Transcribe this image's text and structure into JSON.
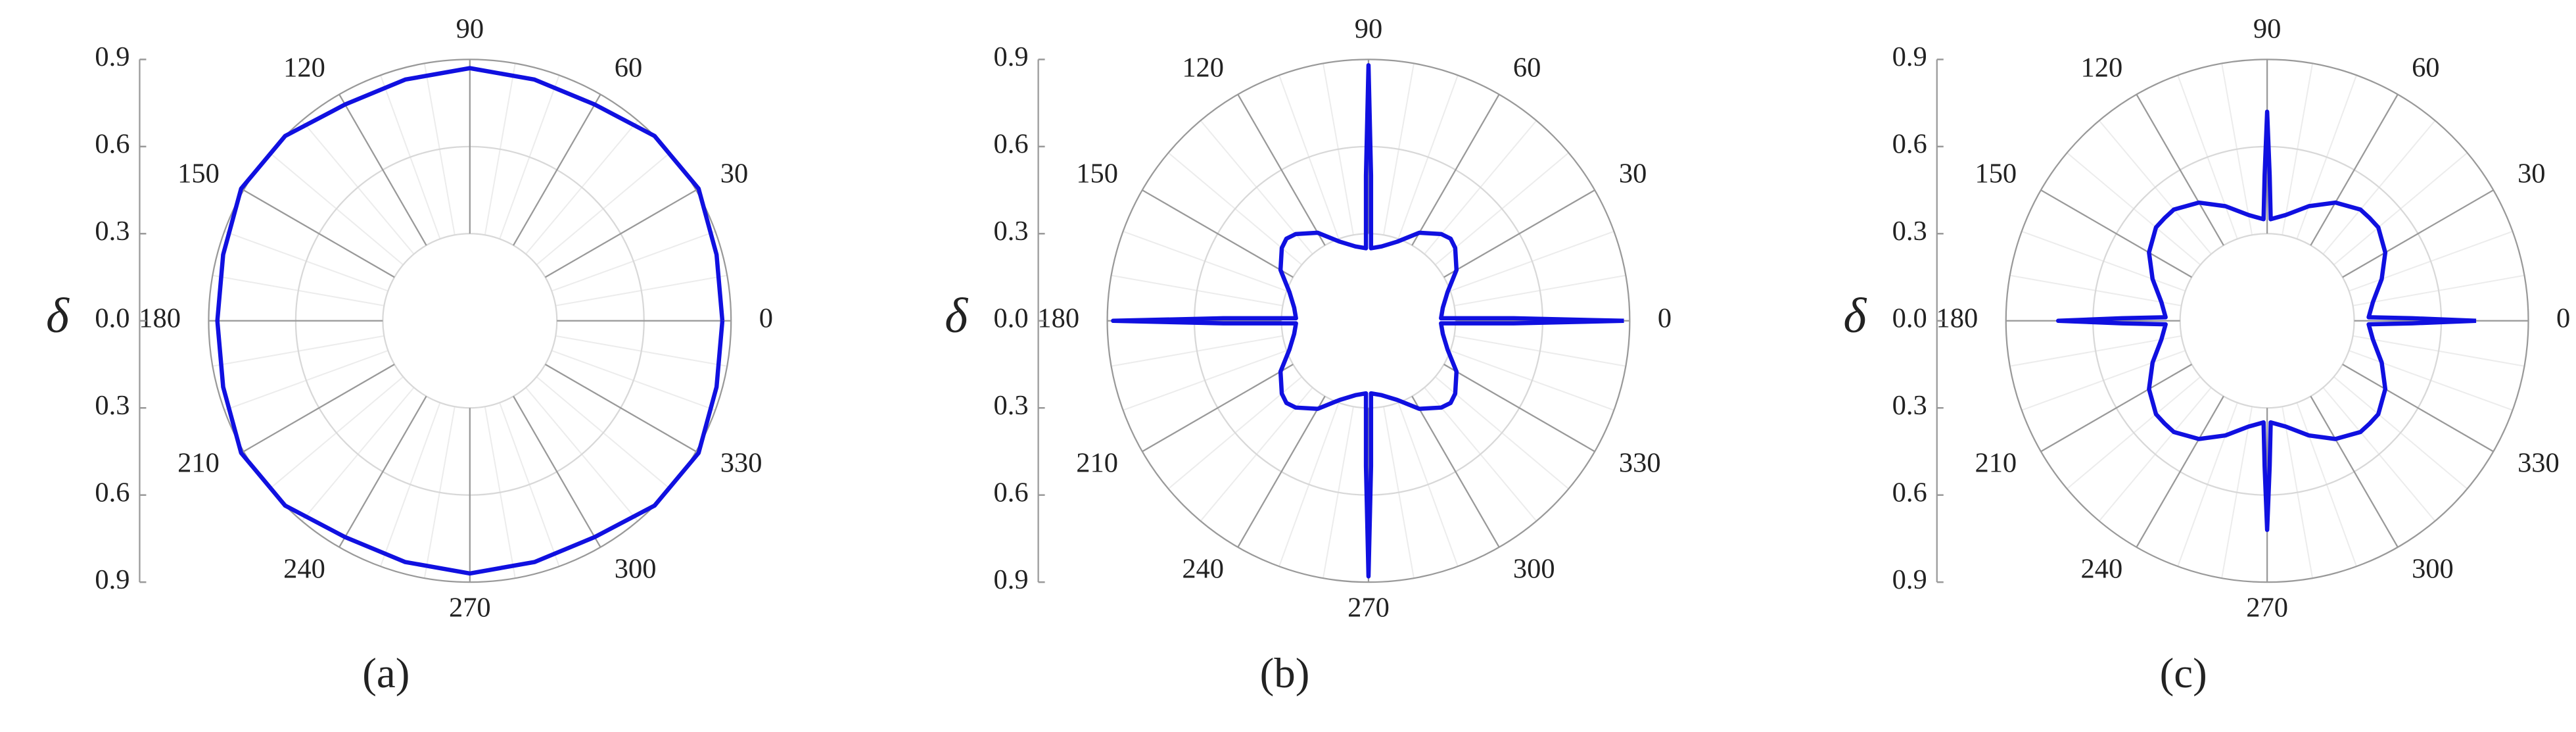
{
  "chart_data": [
    {
      "type": "polar",
      "sublabel": "(a)",
      "ylabel": "δ",
      "color": "#1010e0",
      "rlim": [
        0,
        0.9
      ],
      "rticks": [
        {
          "value": 0,
          "label": "0.0"
        },
        0.3,
        0.6,
        0.9
      ],
      "thetaticks": [
        0,
        30,
        60,
        90,
        120,
        150,
        180,
        210,
        240,
        270,
        300,
        330
      ],
      "theta": [
        0,
        15,
        30,
        45,
        60,
        75,
        90,
        105,
        120,
        135,
        150,
        165,
        180,
        195,
        210,
        225,
        240,
        255,
        270,
        285,
        300,
        315,
        330,
        345,
        360
      ],
      "values": [
        0.87,
        0.88,
        0.91,
        0.9,
        0.86,
        0.86,
        0.87,
        0.86,
        0.86,
        0.9,
        0.91,
        0.88,
        0.87,
        0.88,
        0.91,
        0.9,
        0.86,
        0.86,
        0.87,
        0.86,
        0.86,
        0.9,
        0.91,
        0.88,
        0.87
      ]
    },
    {
      "type": "polar",
      "sublabel": "(b)",
      "ylabel": "δ",
      "color": "#1010e0",
      "rlim": [
        0,
        0.9
      ],
      "rticks": [
        {
          "value": 0,
          "label": "0.0"
        },
        0.3,
        0.6,
        0.9
      ],
      "thetaticks": [
        0,
        30,
        60,
        90,
        120,
        150,
        180,
        210,
        240,
        270,
        300,
        330
      ],
      "theta": [
        0,
        1,
        2,
        10,
        20,
        30,
        40,
        45,
        50,
        60,
        70,
        80,
        88,
        89,
        90,
        91,
        92,
        100,
        110,
        120,
        130,
        135,
        140,
        150,
        160,
        170,
        178,
        179,
        180,
        181,
        182,
        190,
        200,
        210,
        220,
        225,
        230,
        240,
        250,
        260,
        268,
        269,
        270,
        271,
        272,
        280,
        290,
        300,
        310,
        315,
        320,
        330,
        340,
        350,
        358,
        359,
        360
      ],
      "values": [
        0.88,
        0.5,
        0.25,
        0.26,
        0.29,
        0.35,
        0.39,
        0.4,
        0.39,
        0.35,
        0.29,
        0.26,
        0.25,
        0.5,
        0.88,
        0.5,
        0.25,
        0.26,
        0.29,
        0.35,
        0.39,
        0.4,
        0.39,
        0.35,
        0.29,
        0.26,
        0.25,
        0.5,
        0.88,
        0.5,
        0.25,
        0.26,
        0.29,
        0.35,
        0.39,
        0.4,
        0.39,
        0.35,
        0.29,
        0.26,
        0.25,
        0.5,
        0.88,
        0.5,
        0.25,
        0.26,
        0.29,
        0.35,
        0.39,
        0.4,
        0.39,
        0.35,
        0.29,
        0.26,
        0.25,
        0.5,
        0.88
      ]
    },
    {
      "type": "polar",
      "sublabel": "(c)",
      "ylabel": "δ",
      "color": "#1010e0",
      "rlim": [
        0,
        0.9
      ],
      "rticks": [
        {
          "value": 0,
          "label": "0.0"
        },
        0.3,
        0.6,
        0.9
      ],
      "thetaticks": [
        0,
        30,
        60,
        90,
        120,
        150,
        180,
        210,
        240,
        270,
        300,
        330
      ],
      "theta": [
        0,
        1,
        2,
        10,
        20,
        30,
        40,
        45,
        50,
        60,
        70,
        80,
        88,
        89,
        90,
        91,
        92,
        100,
        110,
        120,
        130,
        135,
        140,
        150,
        160,
        170,
        178,
        179,
        180,
        181,
        182,
        190,
        200,
        210,
        220,
        225,
        230,
        240,
        250,
        260,
        268,
        269,
        270,
        271,
        272,
        280,
        290,
        300,
        310,
        315,
        320,
        330,
        340,
        350,
        358,
        359,
        360
      ],
      "values": [
        0.72,
        0.5,
        0.35,
        0.37,
        0.42,
        0.47,
        0.5,
        0.5,
        0.5,
        0.47,
        0.42,
        0.37,
        0.35,
        0.5,
        0.72,
        0.5,
        0.35,
        0.37,
        0.42,
        0.47,
        0.5,
        0.5,
        0.5,
        0.47,
        0.42,
        0.37,
        0.35,
        0.5,
        0.72,
        0.5,
        0.35,
        0.37,
        0.42,
        0.47,
        0.5,
        0.5,
        0.5,
        0.47,
        0.42,
        0.37,
        0.35,
        0.5,
        0.72,
        0.5,
        0.35,
        0.37,
        0.42,
        0.47,
        0.5,
        0.5,
        0.5,
        0.47,
        0.42,
        0.37,
        0.35,
        0.5,
        0.72
      ]
    }
  ]
}
